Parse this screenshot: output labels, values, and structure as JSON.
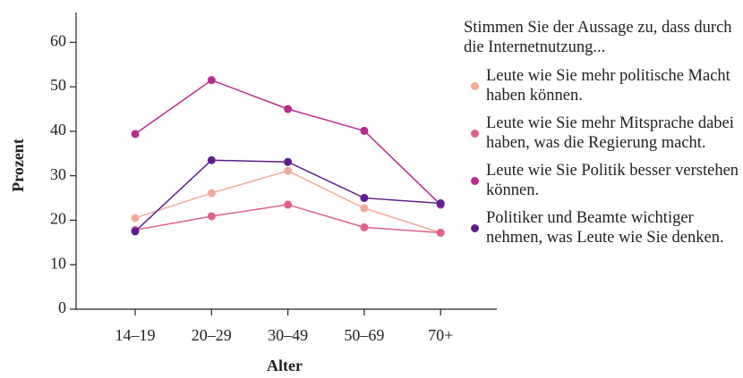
{
  "chart_data": {
    "type": "line",
    "xlabel": "Alter",
    "ylabel": "Prozent",
    "legend_title": "Stimmen Sie der Aussage zu, dass durch die Internetnutzung...",
    "categories": [
      "14–19",
      "20–29",
      "30–49",
      "50–69",
      "70+"
    ],
    "series": [
      {
        "name": "Leute wie Sie mehr politische Macht haben können.",
        "color": "#f2a99a",
        "values": [
          20.5,
          26.1,
          31.1,
          22.7,
          17.2
        ]
      },
      {
        "name": "Leute wie Sie mehr Mitsprache dabei haben, was die Regierung macht.",
        "color": "#e0608c",
        "values": [
          17.8,
          20.9,
          23.5,
          18.4,
          17.2
        ]
      },
      {
        "name": "Leute wie Sie Politik besser verstehen können.",
        "color": "#b82b8c",
        "values": [
          39.4,
          51.5,
          45.0,
          40.1,
          23.5
        ]
      },
      {
        "name": "Politiker und Beamte wichtiger nehmen, was Leute wie Sie denken.",
        "color": "#5c1e8a",
        "values": [
          17.5,
          33.5,
          33.1,
          25.0,
          23.8
        ]
      }
    ],
    "ylim": [
      0,
      66.7
    ],
    "yticks": [
      0,
      10,
      20,
      30,
      40,
      50,
      60
    ]
  }
}
